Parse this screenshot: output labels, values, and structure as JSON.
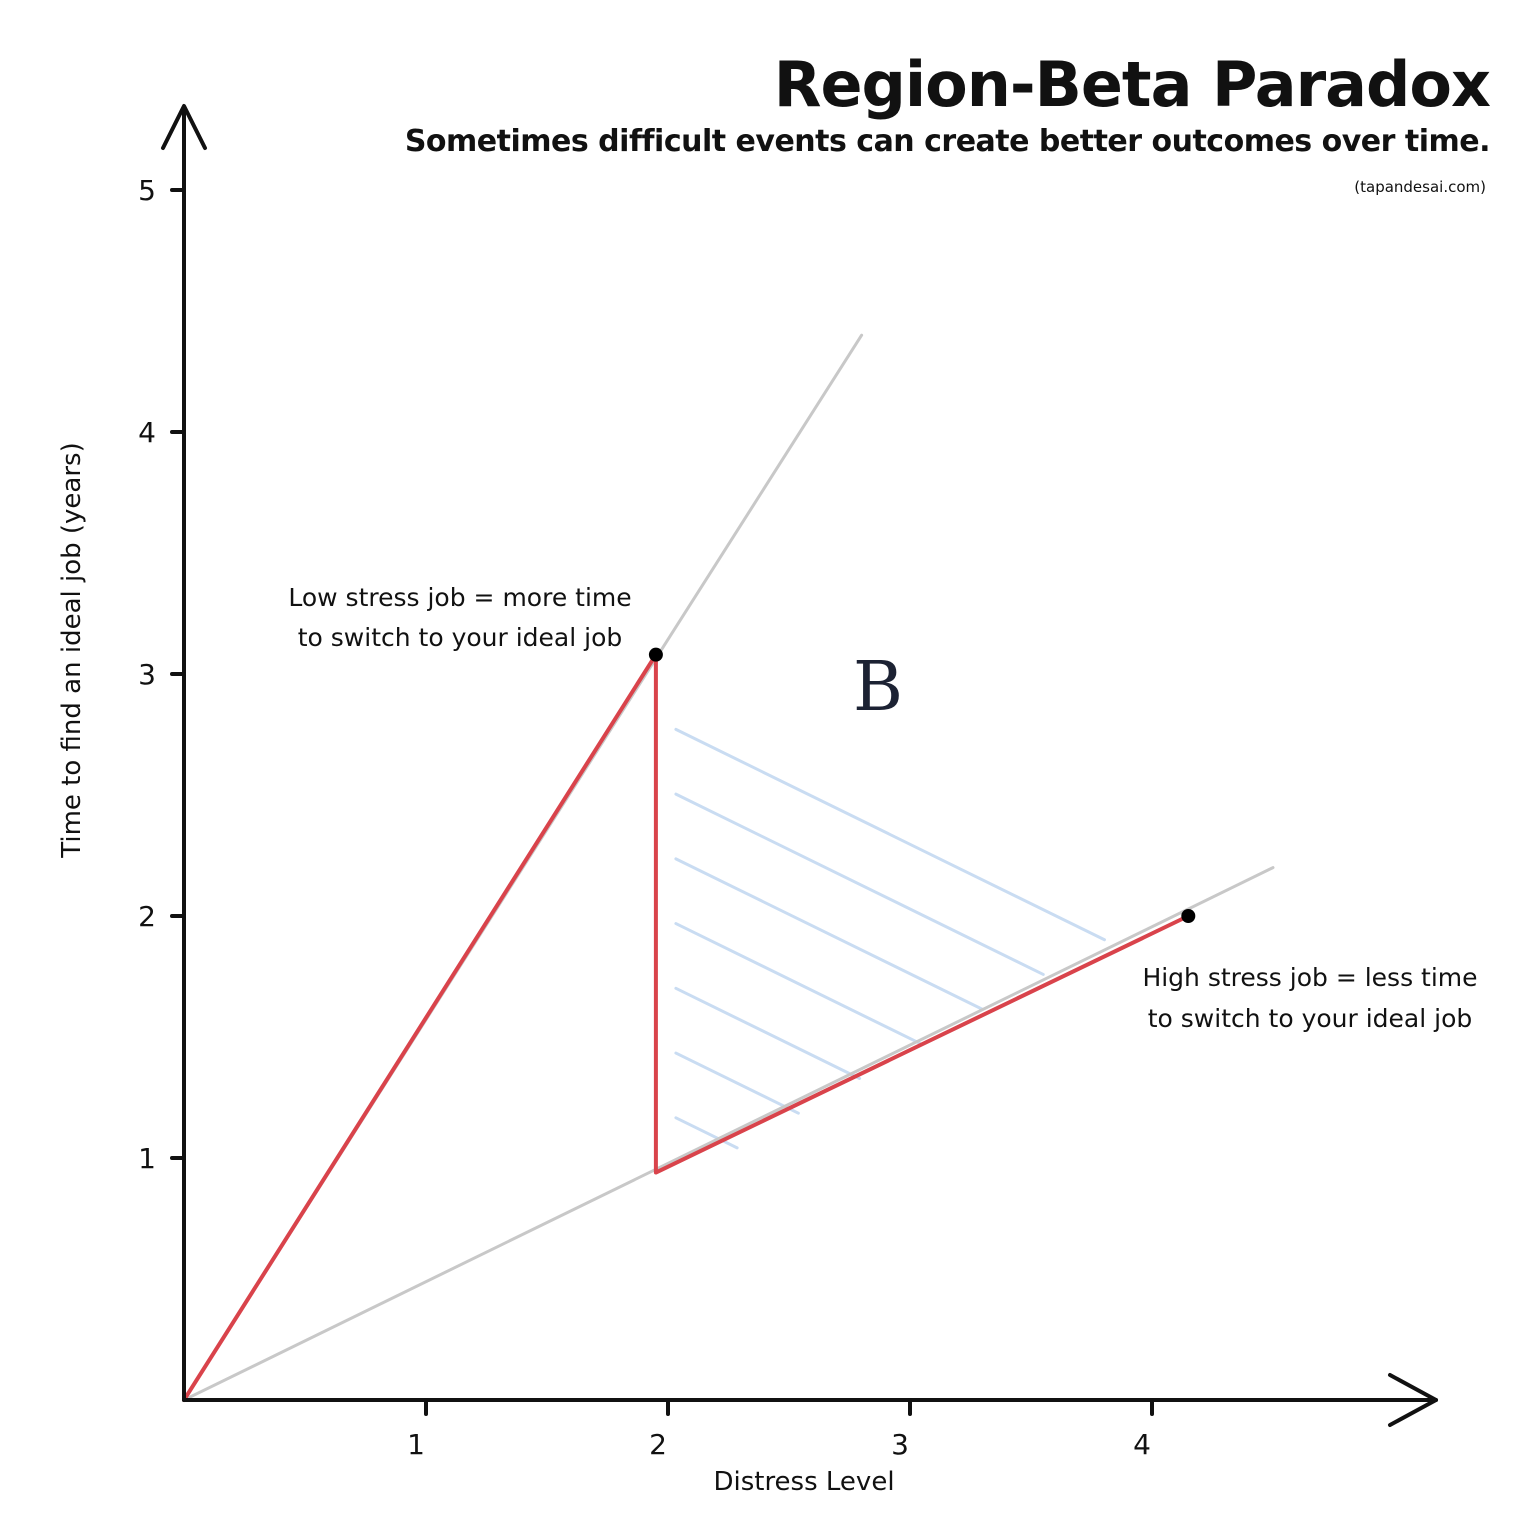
{
  "header": {
    "title": "Region-Beta Paradox",
    "subtitle": "Sometimes difficult events can create better outcomes over time.",
    "credit": "(tapandesai.com)"
  },
  "chart_data": {
    "type": "line",
    "title": "Region-Beta Paradox",
    "subtitle": "Sometimes difficult events can create better outcomes over time.",
    "xlabel": "Distress Level",
    "ylabel": "Time to find an ideal job (years)",
    "xlim": [
      0,
      5.2
    ],
    "ylim": [
      0,
      5.4
    ],
    "x_ticks": [
      1,
      2,
      3,
      4
    ],
    "y_ticks": [
      1,
      2,
      3,
      4,
      5
    ],
    "grid": false,
    "series": [
      {
        "values": [
          [
            0,
            0
          ],
          [
            2.8,
            4.4
          ]
        ],
        "color": "#c8c8c8"
      },
      {
        "values": [
          [
            0,
            0
          ],
          [
            4.5,
            2.2
          ]
        ],
        "color": "#c8c8c8"
      },
      {
        "values": [
          [
            0,
            0
          ],
          [
            1.95,
            3.08
          ],
          [
            1.95,
            0.94
          ],
          [
            4.15,
            2.0
          ]
        ],
        "color": "#d9434b"
      }
    ],
    "points": [
      {
        "x": 1.95,
        "y": 3.08
      },
      {
        "x": 4.15,
        "y": 2.0
      }
    ],
    "region": {
      "label": "B",
      "color": "#c9dcf2",
      "vertices": [
        [
          1.95,
          3.08
        ],
        [
          1.95,
          0.94
        ],
        [
          4.15,
          2.0
        ]
      ]
    },
    "annotations": [
      {
        "lines": [
          "Low stress job = more time",
          "to switch to your ideal job"
        ]
      },
      {
        "lines": [
          "High stress job = less time",
          "to switch to your ideal job"
        ]
      }
    ]
  }
}
